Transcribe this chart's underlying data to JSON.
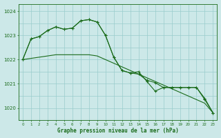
{
  "title": "Graphe pression niveau de la mer (hPa)",
  "background_color": "#cce8e8",
  "grid_color": "#99cccc",
  "line_color": "#1a6b1a",
  "xlim": [
    -0.5,
    23.5
  ],
  "ylim": [
    1019.5,
    1024.3
  ],
  "yticks": [
    1020,
    1021,
    1022,
    1023,
    1024
  ],
  "xticks": [
    0,
    1,
    2,
    3,
    4,
    5,
    6,
    7,
    8,
    9,
    10,
    11,
    12,
    13,
    14,
    15,
    16,
    17,
    18,
    19,
    20,
    21,
    22,
    23
  ],
  "series": [
    {
      "x": [
        0,
        1,
        2,
        3,
        4,
        5,
        6,
        7,
        8,
        9,
        10,
        11,
        12,
        13,
        14,
        15,
        16,
        17,
        18,
        19,
        20,
        21,
        22,
        23
      ],
      "y": [
        1022.0,
        1022.05,
        1022.1,
        1022.15,
        1022.2,
        1022.2,
        1022.2,
        1022.2,
        1022.2,
        1022.15,
        1022.0,
        1021.85,
        1021.7,
        1021.55,
        1021.4,
        1021.25,
        1021.1,
        1020.95,
        1020.8,
        1020.65,
        1020.5,
        1020.35,
        1020.2,
        1019.8
      ]
    },
    {
      "x": [
        0,
        1,
        2,
        3,
        4,
        5,
        6,
        7,
        8,
        9,
        10,
        11,
        12,
        13,
        14,
        15,
        16,
        17,
        18,
        19,
        20,
        21,
        22,
        23
      ],
      "y": [
        1022.0,
        1022.85,
        1022.95,
        1023.2,
        1023.35,
        1023.25,
        1023.3,
        1023.6,
        1023.65,
        1023.55,
        1023.0,
        1022.1,
        1021.55,
        1021.45,
        1021.4,
        1021.15,
        1021.05,
        1020.85,
        1020.85,
        1020.85,
        1020.85,
        1020.85,
        1020.4,
        1019.8
      ]
    },
    {
      "x": [
        0,
        1,
        2,
        3,
        4,
        5,
        6,
        7,
        8,
        9,
        10,
        11,
        12,
        13,
        14,
        15,
        16,
        17,
        18,
        19,
        20,
        21,
        22,
        23
      ],
      "y": [
        1022.0,
        1022.85,
        1022.95,
        1023.2,
        1023.35,
        1023.25,
        1023.3,
        1023.6,
        1023.65,
        1023.55,
        1023.0,
        1022.1,
        1021.55,
        1021.45,
        1021.5,
        1021.1,
        1020.7,
        1020.85,
        1020.85,
        1020.85,
        1020.85,
        1020.85,
        1020.35,
        1019.8
      ]
    }
  ]
}
